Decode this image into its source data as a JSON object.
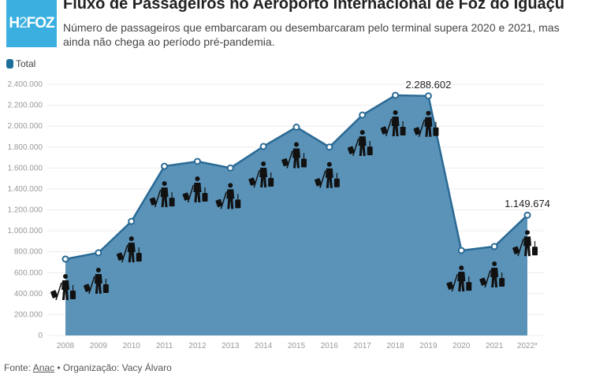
{
  "logo": {
    "text_a": "H",
    "text_b": "2",
    "text_c": "FOZ"
  },
  "title": "Fluxo de Passageiros no Aeroporto Internacional de Foz do Iguaçu",
  "subtitle": "Número de passageiros que embarcaram ou desembarcaram pelo terminal supera 2020 e 2021, mas ainda não chega ao período pré-pandemia.",
  "footer": {
    "source_prefix": "Fonte: ",
    "source_link": "Anac",
    "org": " • Organização: Vacy Álvaro"
  },
  "colors": {
    "area": "#5b93b8",
    "line": "#2a6a95"
  },
  "chart_data": {
    "type": "area",
    "legend": [
      {
        "name": "Total",
        "color": "#1f6f9b"
      }
    ],
    "legend_position": "top-left",
    "categories": [
      "2008",
      "2009",
      "2010",
      "2011",
      "2012",
      "2013",
      "2014",
      "2015",
      "2016",
      "2017",
      "2018",
      "2019",
      "2020",
      "2021",
      "2022*"
    ],
    "series": [
      {
        "name": "Total",
        "values": [
          730000,
          790000,
          1090000,
          1617000,
          1663000,
          1600000,
          1806000,
          1990000,
          1800000,
          2106000,
          2295000,
          2288602,
          812000,
          850000,
          1149674
        ]
      }
    ],
    "ylim": [
      0,
      2400000
    ],
    "yticks": [
      "0",
      "200.000",
      "400.000",
      "600.000",
      "800.000",
      "1.000.000",
      "1.200.000",
      "1.400.000",
      "1.600.000",
      "1.800.000",
      "2.000.000",
      "2.200.000",
      "2.400.000"
    ],
    "annotations": [
      {
        "index": 11,
        "text": "2.288.602"
      },
      {
        "index": 14,
        "text": "1.149.674"
      }
    ],
    "grid": true
  }
}
